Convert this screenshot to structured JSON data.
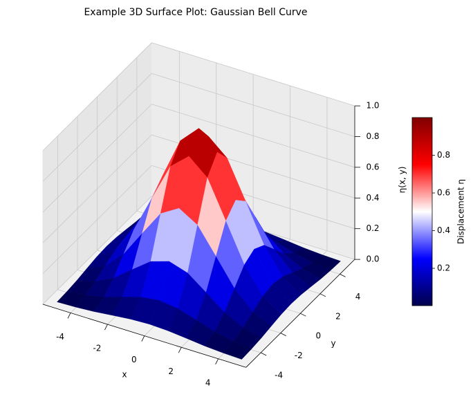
{
  "chart_data": {
    "type": "surface",
    "title": "Example 3D Surface Plot: Gaussian Bell Curve",
    "xlabel": "x",
    "ylabel": "y",
    "zlabel": "η(x, y)",
    "x": [
      -5,
      -4,
      -3,
      -2,
      -1,
      0,
      1,
      2,
      3,
      4,
      5
    ],
    "y": [
      -5,
      -4,
      -3,
      -2,
      -1,
      0,
      1,
      2,
      3,
      4,
      5
    ],
    "z": [
      [
        0.002,
        0.006,
        0.014,
        0.027,
        0.039,
        0.044,
        0.039,
        0.027,
        0.014,
        0.006,
        0.002
      ],
      [
        0.006,
        0.018,
        0.044,
        0.082,
        0.119,
        0.135,
        0.119,
        0.082,
        0.044,
        0.018,
        0.006
      ],
      [
        0.014,
        0.044,
        0.105,
        0.197,
        0.287,
        0.325,
        0.287,
        0.197,
        0.105,
        0.044,
        0.014
      ],
      [
        0.027,
        0.082,
        0.197,
        0.368,
        0.535,
        0.607,
        0.535,
        0.368,
        0.197,
        0.082,
        0.027
      ],
      [
        0.039,
        0.119,
        0.287,
        0.535,
        0.779,
        0.882,
        0.779,
        0.535,
        0.287,
        0.119,
        0.039
      ],
      [
        0.044,
        0.135,
        0.325,
        0.607,
        0.882,
        1,
        0.882,
        0.607,
        0.325,
        0.135,
        0.044
      ],
      [
        0.039,
        0.119,
        0.287,
        0.535,
        0.779,
        0.882,
        0.779,
        0.535,
        0.287,
        0.119,
        0.039
      ],
      [
        0.027,
        0.082,
        0.197,
        0.368,
        0.535,
        0.607,
        0.535,
        0.368,
        0.197,
        0.082,
        0.027
      ],
      [
        0.014,
        0.044,
        0.105,
        0.197,
        0.287,
        0.325,
        0.287,
        0.197,
        0.105,
        0.044,
        0.014
      ],
      [
        0.006,
        0.018,
        0.044,
        0.082,
        0.119,
        0.135,
        0.119,
        0.082,
        0.044,
        0.018,
        0.006
      ],
      [
        0.002,
        0.006,
        0.014,
        0.027,
        0.039,
        0.044,
        0.039,
        0.027,
        0.014,
        0.006,
        0.002
      ]
    ],
    "xlim": [
      -5.5,
      5.5
    ],
    "ylim": [
      -5.5,
      5.5
    ],
    "zlim": [
      0,
      1
    ],
    "xticks": [
      -4,
      -2,
      0,
      2,
      4
    ],
    "yticks": [
      -4,
      -2,
      0,
      2,
      4
    ],
    "zticks": [
      {
        "value": 0,
        "label": "0.0"
      },
      0.2,
      0.4,
      0.6,
      0.8,
      {
        "value": 1,
        "label": "1.0"
      }
    ],
    "grid": true,
    "cmap": "seismic",
    "clim": [
      0.002,
      1
    ],
    "colorbar_label": "Displacement η",
    "colorbar_ticks": [
      0.2,
      0.4,
      0.6,
      0.8
    ]
  }
}
